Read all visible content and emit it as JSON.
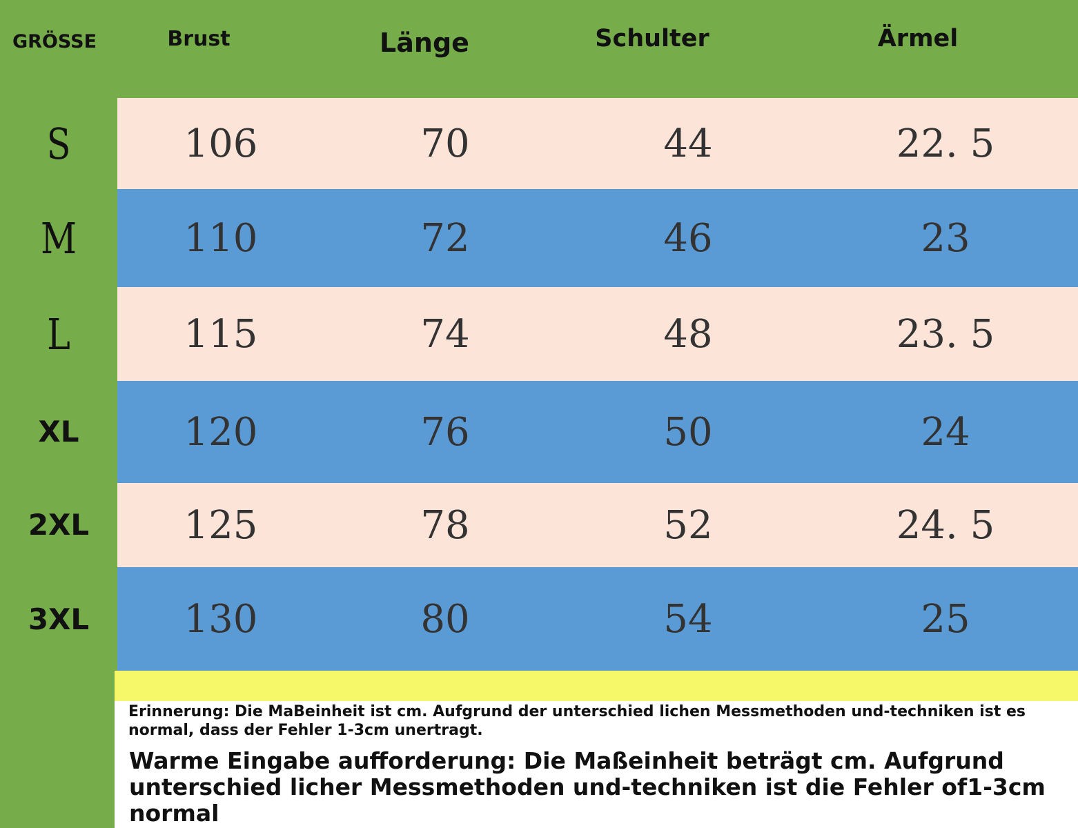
{
  "headers": {
    "size": "GRÖSSE",
    "chest": "Brust",
    "length": "Länge",
    "shoulder": "Schulter",
    "sleeve": "Ärmel"
  },
  "rows": [
    {
      "size": "S",
      "chest": "106",
      "length": "70",
      "shoulder": "44",
      "sleeve": "22. 5"
    },
    {
      "size": "M",
      "chest": "110",
      "length": "72",
      "shoulder": "46",
      "sleeve": "23"
    },
    {
      "size": "L",
      "chest": "115",
      "length": "74",
      "shoulder": "48",
      "sleeve": "23. 5"
    },
    {
      "size": "XL",
      "chest": "120",
      "length": "76",
      "shoulder": "50",
      "sleeve": "24"
    },
    {
      "size": "2XL",
      "chest": "125",
      "length": "78",
      "shoulder": "52",
      "sleeve": "24. 5"
    },
    {
      "size": "3XL",
      "chest": "130",
      "length": "80",
      "shoulder": "54",
      "sleeve": "25"
    }
  ],
  "notes": {
    "reminder": "Erinnerung: Die MaBeinheit ist cm. Aufgrund der unterschied lichen Messmethoden und-techniken ist es normal, dass der Fehler 1-3cm unertragt.",
    "warm_prompt": "Warme Eingabe aufforderung: Die Maßeinheit beträgt cm. Aufgrund unterschied licher Messmethoden und-techniken ist die Fehler of1-3cm normal"
  },
  "colors": {
    "green": "#76ad4a",
    "pink_row": "#fde4d8",
    "blue_row": "#5b9bd5",
    "yellow_band": "#f7f76a"
  }
}
